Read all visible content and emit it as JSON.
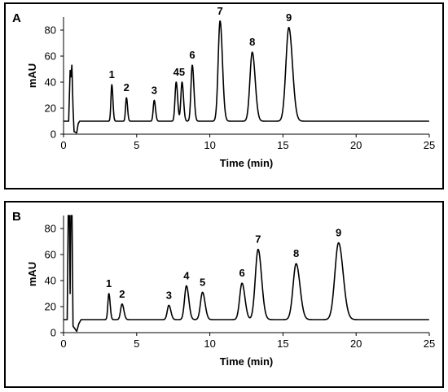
{
  "chart_data": [
    {
      "type": "line",
      "panel_label": "A",
      "xlabel": "Time (min)",
      "ylabel": "mAU",
      "xlim": [
        0,
        25
      ],
      "ylim": [
        0,
        90
      ],
      "xticks": [
        0,
        5,
        10,
        15,
        20,
        25
      ],
      "yticks": [
        0,
        20,
        40,
        60,
        80
      ],
      "grid": false,
      "baseline": 10,
      "injection_artifact": [
        {
          "x": 0,
          "y": 10
        },
        {
          "x": 0.35,
          "y": 10
        },
        {
          "x": 0.45,
          "y": 49
        },
        {
          "x": 0.5,
          "y": 44
        },
        {
          "x": 0.57,
          "y": 53
        },
        {
          "x": 0.65,
          "y": 20
        },
        {
          "x": 0.72,
          "y": 2
        },
        {
          "x": 0.9,
          "y": 1
        },
        {
          "x": 1.0,
          "y": 8
        },
        {
          "x": 1.1,
          "y": 10
        }
      ],
      "peaks": [
        {
          "label": "1",
          "time": 3.3,
          "height": 38,
          "width": 0.06
        },
        {
          "label": "2",
          "time": 4.3,
          "height": 28,
          "width": 0.06
        },
        {
          "label": "3",
          "time": 6.2,
          "height": 26,
          "width": 0.07
        },
        {
          "label": "4",
          "time": 7.7,
          "height": 40,
          "width": 0.08
        },
        {
          "label": "5",
          "time": 8.1,
          "height": 40,
          "width": 0.08
        },
        {
          "label": "6",
          "time": 8.8,
          "height": 53,
          "width": 0.09
        },
        {
          "label": "7",
          "time": 10.7,
          "height": 87,
          "width": 0.13
        },
        {
          "label": "8",
          "time": 12.9,
          "height": 63,
          "width": 0.16
        },
        {
          "label": "9",
          "time": 15.4,
          "height": 82,
          "width": 0.2
        }
      ]
    },
    {
      "type": "line",
      "panel_label": "B",
      "xlabel": "Time (min)",
      "ylabel": "mAU",
      "xlim": [
        0,
        25
      ],
      "ylim": [
        0,
        90
      ],
      "xticks": [
        0,
        5,
        10,
        15,
        20,
        25
      ],
      "yticks": [
        0,
        20,
        40,
        60,
        80
      ],
      "grid": false,
      "baseline": 10,
      "injection_artifact": [
        {
          "x": 0,
          "y": 10
        },
        {
          "x": 0.25,
          "y": 10
        },
        {
          "x": 0.32,
          "y": 90
        },
        {
          "x": 0.4,
          "y": 90
        },
        {
          "x": 0.45,
          "y": 30
        },
        {
          "x": 0.5,
          "y": 90
        },
        {
          "x": 0.58,
          "y": 90
        },
        {
          "x": 0.65,
          "y": 5
        },
        {
          "x": 0.9,
          "y": 1
        },
        {
          "x": 1.05,
          "y": 7
        },
        {
          "x": 1.2,
          "y": 10
        }
      ],
      "peaks": [
        {
          "label": "1",
          "time": 3.1,
          "height": 30,
          "width": 0.07
        },
        {
          "label": "2",
          "time": 4.0,
          "height": 22,
          "width": 0.1
        },
        {
          "label": "3",
          "time": 7.2,
          "height": 21,
          "width": 0.11
        },
        {
          "label": "4",
          "time": 8.4,
          "height": 36,
          "width": 0.13
        },
        {
          "label": "5",
          "time": 9.5,
          "height": 31,
          "width": 0.14
        },
        {
          "label": "6",
          "time": 12.2,
          "height": 38,
          "width": 0.16
        },
        {
          "label": "7",
          "time": 13.3,
          "height": 64,
          "width": 0.19
        },
        {
          "label": "8",
          "time": 15.9,
          "height": 53,
          "width": 0.21
        },
        {
          "label": "9",
          "time": 18.8,
          "height": 69,
          "width": 0.25
        }
      ]
    }
  ]
}
